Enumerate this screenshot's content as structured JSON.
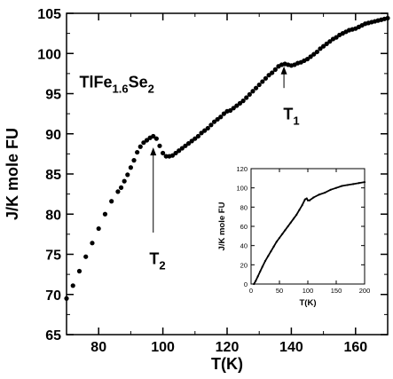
{
  "chart_data": [
    {
      "type": "scatter",
      "title": "",
      "xlabel": "T(K)",
      "ylabel": "J/K mole FU",
      "xlim": [
        70,
        170
      ],
      "ylim": [
        65,
        105
      ],
      "xticks": [
        80,
        100,
        120,
        140,
        160
      ],
      "yticks": [
        65,
        70,
        75,
        80,
        85,
        90,
        95,
        100,
        105
      ],
      "grid": false,
      "annotations": {
        "compound": {
          "main": "TlFe",
          "sub1": "1.6",
          "mid": "Se",
          "sub2": "2",
          "x": 74,
          "y": 95.8
        },
        "t1": {
          "main": "T",
          "sub": "1",
          "x": 137.5,
          "y": 91.8,
          "arrow_from": [
            137.7,
            95.7
          ],
          "arrow_to": [
            137.7,
            98.4
          ]
        },
        "t2": {
          "main": "T",
          "sub": "2",
          "x": 95.8,
          "y": 73.8,
          "arrow_from": [
            97.0,
            77.7
          ],
          "arrow_to": [
            97.0,
            88.3
          ]
        }
      },
      "series": [
        {
          "name": "",
          "points": [
            [
              70,
              69.5
            ],
            [
              72,
              71.1
            ],
            [
              74,
              72.9
            ],
            [
              76,
              74.7
            ],
            [
              78,
              76.4
            ],
            [
              80,
              78.2
            ],
            [
              82,
              80.0
            ],
            [
              84,
              81.6
            ],
            [
              86,
              82.8
            ],
            [
              87,
              83.3
            ],
            [
              88,
              84.1
            ],
            [
              89,
              84.9
            ],
            [
              90,
              85.8
            ],
            [
              91,
              86.7
            ],
            [
              92,
              87.7
            ],
            [
              93,
              88.4
            ],
            [
              94,
              88.9
            ],
            [
              95,
              89.2
            ],
            [
              96,
              89.5
            ],
            [
              97,
              89.7
            ],
            [
              98,
              89.4
            ],
            [
              99,
              88.5
            ],
            [
              100,
              87.6
            ],
            [
              101,
              87.2
            ],
            [
              102,
              87.2
            ],
            [
              103,
              87.3
            ],
            [
              104,
              87.6
            ],
            [
              105,
              87.9
            ],
            [
              106,
              88.2
            ],
            [
              107,
              88.5
            ],
            [
              108,
              88.8
            ],
            [
              109,
              89.1
            ],
            [
              110,
              89.4
            ],
            [
              111,
              89.7
            ],
            [
              112,
              90.1
            ],
            [
              113,
              90.4
            ],
            [
              114,
              90.7
            ],
            [
              115,
              91.1
            ],
            [
              116,
              91.5
            ],
            [
              117,
              91.8
            ],
            [
              118,
              92.1
            ],
            [
              119,
              92.5
            ],
            [
              120,
              92.8
            ],
            [
              121,
              92.9
            ],
            [
              122,
              93.2
            ],
            [
              123,
              93.5
            ],
            [
              124,
              93.8
            ],
            [
              125,
              94.1
            ],
            [
              126,
              94.5
            ],
            [
              127,
              94.9
            ],
            [
              128,
              95.3
            ],
            [
              129,
              95.7
            ],
            [
              130,
              96.1
            ],
            [
              131,
              96.5
            ],
            [
              132,
              96.9
            ],
            [
              133,
              97.3
            ],
            [
              134,
              97.6
            ],
            [
              135,
              98.0
            ],
            [
              136,
              98.4
            ],
            [
              137,
              98.6
            ],
            [
              138,
              98.7
            ],
            [
              139,
              98.6
            ],
            [
              140,
              98.5
            ],
            [
              141,
              98.6
            ],
            [
              142,
              98.8
            ],
            [
              143,
              98.9
            ],
            [
              144,
              99.1
            ],
            [
              145,
              99.3
            ],
            [
              146,
              99.6
            ],
            [
              147,
              99.9
            ],
            [
              148,
              100.2
            ],
            [
              149,
              100.6
            ],
            [
              150,
              100.9
            ],
            [
              151,
              101.2
            ],
            [
              152,
              101.5
            ],
            [
              153,
              101.8
            ],
            [
              154,
              102.0
            ],
            [
              155,
              102.3
            ],
            [
              156,
              102.5
            ],
            [
              157,
              102.7
            ],
            [
              158,
              102.9
            ],
            [
              159,
              103.0
            ],
            [
              160,
              103.1
            ],
            [
              161,
              103.3
            ],
            [
              162,
              103.5
            ],
            [
              163,
              103.7
            ],
            [
              164,
              103.8
            ],
            [
              165,
              103.9
            ],
            [
              166,
              104.0
            ],
            [
              167,
              104.1
            ],
            [
              168,
              104.2
            ],
            [
              169,
              104.3
            ],
            [
              170,
              104.4
            ]
          ]
        }
      ]
    },
    {
      "type": "line",
      "title": "",
      "xlabel": "T(K)",
      "ylabel": "J/K mole FU",
      "xlim": [
        0,
        200
      ],
      "ylim": [
        0,
        120
      ],
      "xticks": [
        0,
        50,
        100,
        150,
        200
      ],
      "yticks": [
        0,
        20,
        40,
        60,
        80,
        100,
        120
      ],
      "grid": false,
      "series": [
        {
          "name": "",
          "points": [
            [
              5,
              0
            ],
            [
              8,
              3
            ],
            [
              12,
              8
            ],
            [
              16,
              13
            ],
            [
              20,
              18
            ],
            [
              25,
              24
            ],
            [
              30,
              29
            ],
            [
              35,
              34
            ],
            [
              40,
              39
            ],
            [
              45,
              44
            ],
            [
              50,
              48
            ],
            [
              55,
              52
            ],
            [
              60,
              56
            ],
            [
              65,
              60
            ],
            [
              70,
              64
            ],
            [
              75,
              68
            ],
            [
              80,
              72
            ],
            [
              85,
              77
            ],
            [
              90,
              82
            ],
            [
              95,
              88
            ],
            [
              98,
              89
            ],
            [
              100,
              87
            ],
            [
              103,
              87
            ],
            [
              110,
              90
            ],
            [
              120,
              93
            ],
            [
              130,
              95
            ],
            [
              140,
              98
            ],
            [
              150,
              100
            ],
            [
              160,
              102
            ],
            [
              170,
              103
            ],
            [
              180,
              104
            ],
            [
              190,
              105
            ],
            [
              200,
              106
            ]
          ]
        }
      ]
    }
  ]
}
